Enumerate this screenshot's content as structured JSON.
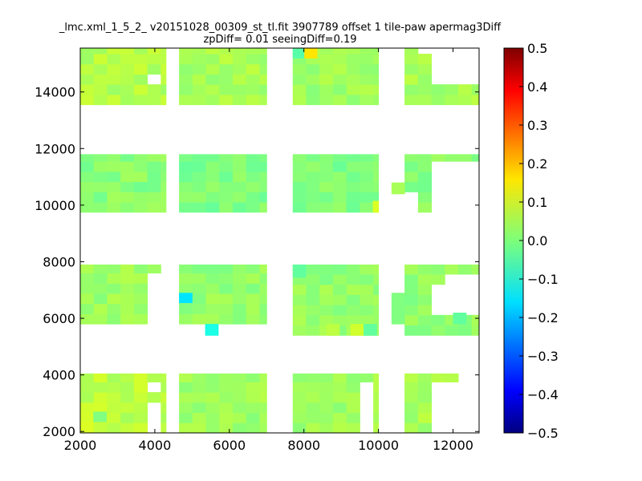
{
  "chart_data": {
    "type": "heatmap",
    "title_line1": "_lmc.xml_1_5_2_ v20151028_00309_st_tl.fit 3907789 offset 1 tile-paw apermag3Diff",
    "title_line2": "zpDiff= 0.01 seeingDiff=0.19",
    "xlim": [
      2000,
      12700
    ],
    "ylim": [
      1950,
      15550
    ],
    "xticks": [
      "2000",
      "4000",
      "6000",
      "8000",
      "10000",
      "12000"
    ],
    "yticks": [
      "2000",
      "4000",
      "6000",
      "8000",
      "10000",
      "12000",
      "14000"
    ],
    "colorbar": {
      "vmin": -0.5,
      "vmax": 0.5,
      "colormap": "jet",
      "ticks": [
        "0.5",
        "0.4",
        "0.3",
        "0.2",
        "0.1",
        "0.0",
        "−0.1",
        "−0.2",
        "−0.3",
        "−0.4",
        "−0.5"
      ]
    },
    "cell_size": 360,
    "base_value": 0.02,
    "regions": [
      {
        "x": [
          2000,
          4300
        ],
        "y": [
          13550,
          15550
        ],
        "value": 0.05
      },
      {
        "x": [
          4650,
          7000
        ],
        "y": [
          13550,
          15550
        ],
        "value": 0.04
      },
      {
        "x": [
          7700,
          10000
        ],
        "y": [
          13550,
          15550
        ],
        "value": 0.03
      },
      {
        "x": [
          10700,
          12700
        ],
        "y": [
          13550,
          15550
        ],
        "value": 0.04
      },
      {
        "x": [
          2000,
          4300
        ],
        "y": [
          9750,
          11800
        ],
        "value": 0.01
      },
      {
        "x": [
          4650,
          7000
        ],
        "y": [
          9750,
          11800
        ],
        "value": 0.0
      },
      {
        "x": [
          7700,
          10000
        ],
        "y": [
          9750,
          11800
        ],
        "value": 0.0
      },
      {
        "x": [
          10700,
          12700
        ],
        "y": [
          9750,
          11800
        ],
        "value": 0.01
      },
      {
        "x": [
          2000,
          4300
        ],
        "y": [
          5800,
          7900
        ],
        "value": 0.03
      },
      {
        "x": [
          4650,
          7000
        ],
        "y": [
          5800,
          7900
        ],
        "value": 0.02
      },
      {
        "x": [
          7700,
          10000
        ],
        "y": [
          5400,
          7900
        ],
        "value": 0.02
      },
      {
        "x": [
          10700,
          12700
        ],
        "y": [
          5400,
          7900
        ],
        "value": 0.02
      },
      {
        "x": [
          2000,
          4300
        ],
        "y": [
          1950,
          4050
        ],
        "value": 0.06
      },
      {
        "x": [
          4650,
          7000
        ],
        "y": [
          1950,
          4050
        ],
        "value": 0.03
      },
      {
        "x": [
          7700,
          10000
        ],
        "y": [
          1950,
          4050
        ],
        "value": 0.03
      },
      {
        "x": [
          10700,
          12700
        ],
        "y": [
          1950,
          4050
        ],
        "value": 0.04
      }
    ],
    "gaps": [
      {
        "x": [
          4000,
          4300
        ],
        "y": [
          13550,
          14300
        ]
      },
      {
        "x": [
          3900,
          4300
        ],
        "y": [
          14300,
          14550
        ]
      },
      {
        "x": [
          11600,
          12700
        ],
        "y": [
          14150,
          15550
        ]
      },
      {
        "x": [
          11200,
          12700
        ],
        "y": [
          15200,
          15550
        ]
      },
      {
        "x": [
          11600,
          12700
        ],
        "y": [
          9750,
          11400
        ]
      },
      {
        "x": [
          10700,
          11000
        ],
        "y": [
          9750,
          10600
        ]
      },
      {
        "x": [
          3900,
          4300
        ],
        "y": [
          5800,
          7450
        ]
      },
      {
        "x": [
          4300,
          4650
        ],
        "y": [
          5800,
          7900
        ]
      },
      {
        "x": [
          11900,
          12700
        ],
        "y": [
          6100,
          7450
        ]
      },
      {
        "x": [
          11600,
          11900
        ],
        "y": [
          6100,
          7100
        ]
      },
      {
        "x": [
          3900,
          4300
        ],
        "y": [
          1950,
          3050
        ]
      },
      {
        "x": [
          3900,
          4300
        ],
        "y": [
          3400,
          3700
        ]
      },
      {
        "x": [
          9600,
          10000
        ],
        "y": [
          1950,
          3700
        ]
      },
      {
        "x": [
          11600,
          12700
        ],
        "y": [
          1950,
          3700
        ]
      },
      {
        "x": [
          12100,
          12700
        ],
        "y": [
          3700,
          4050
        ]
      }
    ],
    "extra_cells": [
      {
        "x": [
          10350,
          10700
        ],
        "y": [
          10400,
          10800
        ],
        "value": 0.04
      },
      {
        "x": [
          10350,
          10700
        ],
        "y": [
          5800,
          6900
        ],
        "value": 0.0
      },
      {
        "x": [
          4650,
          5000
        ],
        "y": [
          6550,
          6900
        ],
        "value": -0.15
      },
      {
        "x": [
          5350,
          5700
        ],
        "y": [
          5400,
          5800
        ],
        "value": -0.1
      }
    ],
    "highlight_cells": [
      {
        "x": [
          8000,
          8350
        ],
        "y": [
          15200,
          15550
        ],
        "value": 0.15
      },
      {
        "x": [
          7700,
          8000
        ],
        "y": [
          15200,
          15550
        ],
        "value": -0.04
      },
      {
        "x": [
          9850,
          10000
        ],
        "y": [
          9750,
          10150
        ],
        "value": 0.09
      },
      {
        "x": [
          9250,
          9600
        ],
        "y": [
          5400,
          5800
        ],
        "value": 0.08
      },
      {
        "x": [
          8600,
          8950
        ],
        "y": [
          5400,
          5800
        ],
        "value": 0.06
      },
      {
        "x": [
          9600,
          9950
        ],
        "y": [
          5400,
          5800
        ],
        "value": -0.03
      },
      {
        "x": [
          2000,
          2350
        ],
        "y": [
          1950,
          2350
        ],
        "value": 0.09
      },
      {
        "x": [
          2350,
          2700
        ],
        "y": [
          2350,
          2700
        ],
        "value": 0.0
      },
      {
        "x": [
          7700,
          8050
        ],
        "y": [
          7450,
          7900
        ],
        "value": -0.03
      },
      {
        "x": [
          12000,
          12350
        ],
        "y": [
          5800,
          6200
        ],
        "value": -0.03
      }
    ]
  }
}
